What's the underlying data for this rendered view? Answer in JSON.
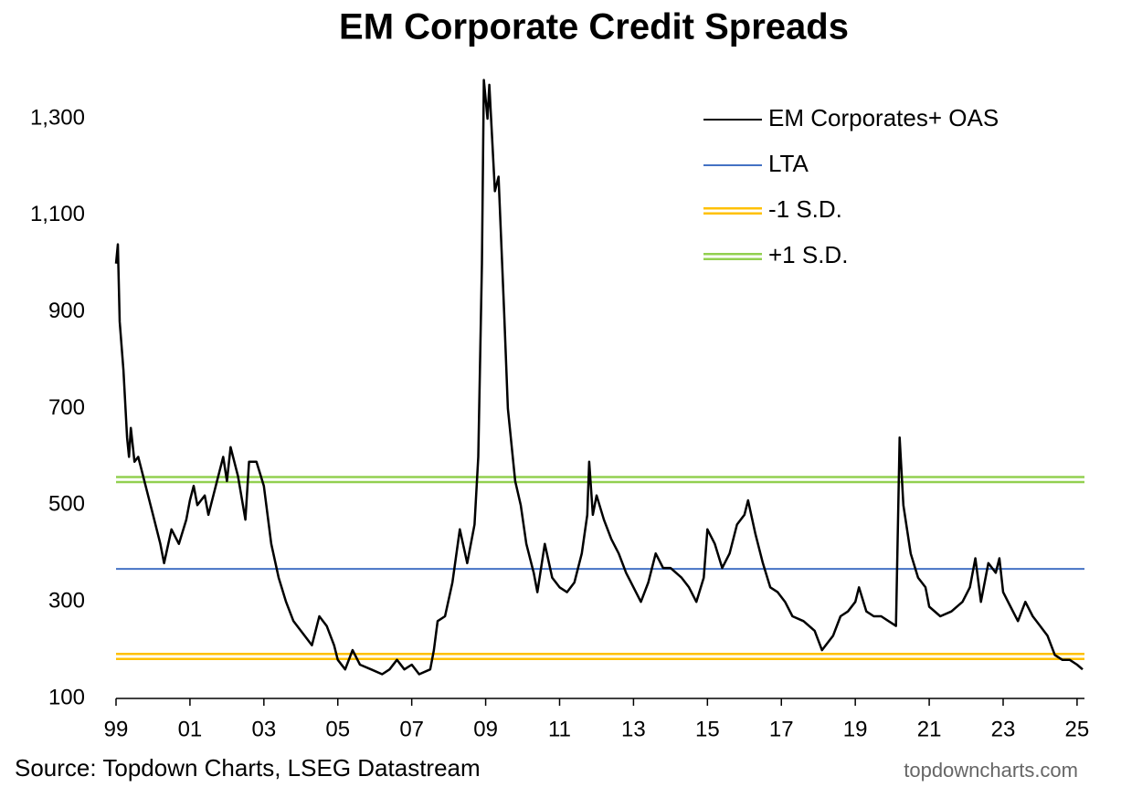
{
  "chart_data": {
    "type": "line",
    "title": "EM Corporate Credit Spreads",
    "source": "Source: Topdown Charts, LSEG Datastream",
    "watermark": "topdowncharts.com",
    "xlim": [
      1999,
      2025.2
    ],
    "ylim": [
      100,
      1385
    ],
    "xticks": [
      {
        "value": 1999,
        "label": "99"
      },
      {
        "value": 2001,
        "label": "01"
      },
      {
        "value": 2003,
        "label": "03"
      },
      {
        "value": 2005,
        "label": "05"
      },
      {
        "value": 2007,
        "label": "07"
      },
      {
        "value": 2009,
        "label": "09"
      },
      {
        "value": 2011,
        "label": "11"
      },
      {
        "value": 2013,
        "label": "13"
      },
      {
        "value": 2015,
        "label": "15"
      },
      {
        "value": 2017,
        "label": "17"
      },
      {
        "value": 2019,
        "label": "19"
      },
      {
        "value": 2021,
        "label": "21"
      },
      {
        "value": 2023,
        "label": "23"
      },
      {
        "value": 2025,
        "label": "25"
      }
    ],
    "yticks": [
      100,
      300,
      500,
      700,
      900,
      {
        "value": 1100,
        "label": "1,100"
      },
      {
        "value": 1300,
        "label": "1,300"
      }
    ],
    "series": [
      {
        "name": "EM Corporates+ OAS",
        "color": "#000000",
        "x": [
          1999.0,
          1999.05,
          1999.1,
          1999.2,
          1999.3,
          1999.35,
          1999.4,
          1999.5,
          1999.6,
          1999.8,
          2000.0,
          2000.2,
          2000.3,
          2000.5,
          2000.7,
          2000.9,
          2001.0,
          2001.1,
          2001.2,
          2001.4,
          2001.5,
          2001.7,
          2001.9,
          2002.0,
          2002.1,
          2002.3,
          2002.5,
          2002.6,
          2002.8,
          2003.0,
          2003.2,
          2003.4,
          2003.6,
          2003.8,
          2004.0,
          2004.3,
          2004.5,
          2004.7,
          2004.9,
          2005.0,
          2005.2,
          2005.4,
          2005.6,
          2005.9,
          2006.2,
          2006.4,
          2006.6,
          2006.8,
          2007.0,
          2007.2,
          2007.5,
          2007.6,
          2007.7,
          2007.9,
          2008.1,
          2008.3,
          2008.5,
          2008.7,
          2008.8,
          2008.9,
          2008.95,
          2009.05,
          2009.1,
          2009.25,
          2009.35,
          2009.5,
          2009.6,
          2009.8,
          2009.95,
          2010.1,
          2010.3,
          2010.4,
          2010.6,
          2010.8,
          2011.0,
          2011.2,
          2011.4,
          2011.6,
          2011.75,
          2011.8,
          2011.9,
          2012.0,
          2012.2,
          2012.4,
          2012.6,
          2012.8,
          2013.0,
          2013.2,
          2013.4,
          2013.6,
          2013.8,
          2014.0,
          2014.3,
          2014.5,
          2014.7,
          2014.9,
          2015.0,
          2015.2,
          2015.4,
          2015.6,
          2015.8,
          2016.0,
          2016.1,
          2016.3,
          2016.5,
          2016.7,
          2016.9,
          2017.1,
          2017.3,
          2017.6,
          2017.9,
          2018.1,
          2018.4,
          2018.6,
          2018.8,
          2019.0,
          2019.1,
          2019.3,
          2019.5,
          2019.7,
          2019.9,
          2020.1,
          2020.2,
          2020.3,
          2020.5,
          2020.7,
          2020.9,
          2021.0,
          2021.3,
          2021.6,
          2021.9,
          2022.1,
          2022.25,
          2022.4,
          2022.6,
          2022.8,
          2022.9,
          2023.0,
          2023.2,
          2023.4,
          2023.6,
          2023.8,
          2024.0,
          2024.2,
          2024.4,
          2024.6,
          2024.8,
          2025.0,
          2025.15
        ],
        "values": [
          1000,
          1040,
          880,
          780,
          640,
          600,
          660,
          590,
          600,
          540,
          480,
          420,
          380,
          450,
          420,
          470,
          510,
          540,
          500,
          520,
          480,
          540,
          600,
          550,
          620,
          560,
          470,
          590,
          590,
          540,
          420,
          350,
          300,
          260,
          240,
          210,
          270,
          250,
          210,
          180,
          160,
          200,
          170,
          160,
          150,
          160,
          180,
          160,
          170,
          150,
          160,
          200,
          260,
          270,
          340,
          450,
          380,
          460,
          600,
          1000,
          1380,
          1300,
          1370,
          1150,
          1180,
          900,
          700,
          550,
          500,
          420,
          360,
          320,
          420,
          350,
          330,
          320,
          340,
          400,
          480,
          590,
          480,
          520,
          470,
          430,
          400,
          360,
          330,
          300,
          340,
          400,
          370,
          370,
          350,
          330,
          300,
          350,
          450,
          420,
          370,
          400,
          460,
          480,
          510,
          440,
          380,
          330,
          320,
          300,
          270,
          260,
          240,
          200,
          230,
          270,
          280,
          300,
          330,
          280,
          270,
          270,
          260,
          250,
          640,
          500,
          400,
          350,
          330,
          290,
          270,
          280,
          300,
          330,
          390,
          300,
          380,
          360,
          390,
          320,
          290,
          260,
          300,
          270,
          250,
          230,
          190,
          180,
          180,
          170,
          160
        ]
      }
    ],
    "reference_lines": [
      {
        "name": "LTA",
        "color": "#4472c4",
        "value": 368
      },
      {
        "name": "-1 S.D.",
        "color": "#ffc000",
        "value": 187
      },
      {
        "name": "+1 S.D.",
        "color": "#92d050",
        "value": 553
      }
    ]
  }
}
